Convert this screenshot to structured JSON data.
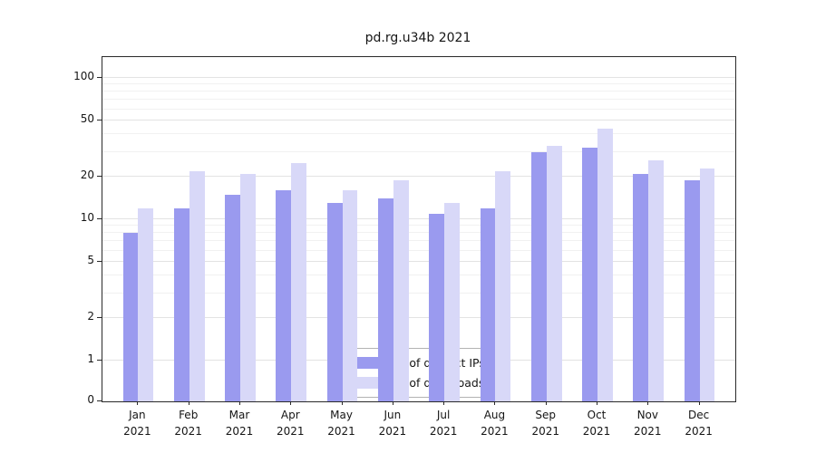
{
  "chart_data": {
    "type": "bar",
    "title": "pd.rg.u34b 2021",
    "yscale": "symlog",
    "ylabel": "",
    "xlabel": "",
    "y_ticks": [
      0,
      1,
      2,
      5,
      10,
      20,
      50,
      100
    ],
    "ylim": [
      0,
      140
    ],
    "grid": "horizontal",
    "legend_position": "lower center",
    "categories": [
      "Jan",
      "Feb",
      "Mar",
      "Apr",
      "May",
      "Jun",
      "Jul",
      "Aug",
      "Sep",
      "Oct",
      "Nov",
      "Dec"
    ],
    "x_year": "2021",
    "series": [
      {
        "name": "Nb of distinct IPs",
        "color": "#9a9aef",
        "values": [
          8,
          12,
          15,
          16,
          13,
          14,
          11,
          12,
          30,
          32,
          21,
          19
        ]
      },
      {
        "name": "Nb of downloads",
        "color": "#d8d8f8",
        "values": [
          12,
          22,
          21,
          25,
          16,
          19,
          13,
          22,
          33,
          44,
          26,
          23
        ]
      }
    ],
    "colors": {
      "grid_major": "#e3e3e3",
      "grid_minor": "#f1f1f1",
      "axis": "#2a2a2a"
    }
  }
}
